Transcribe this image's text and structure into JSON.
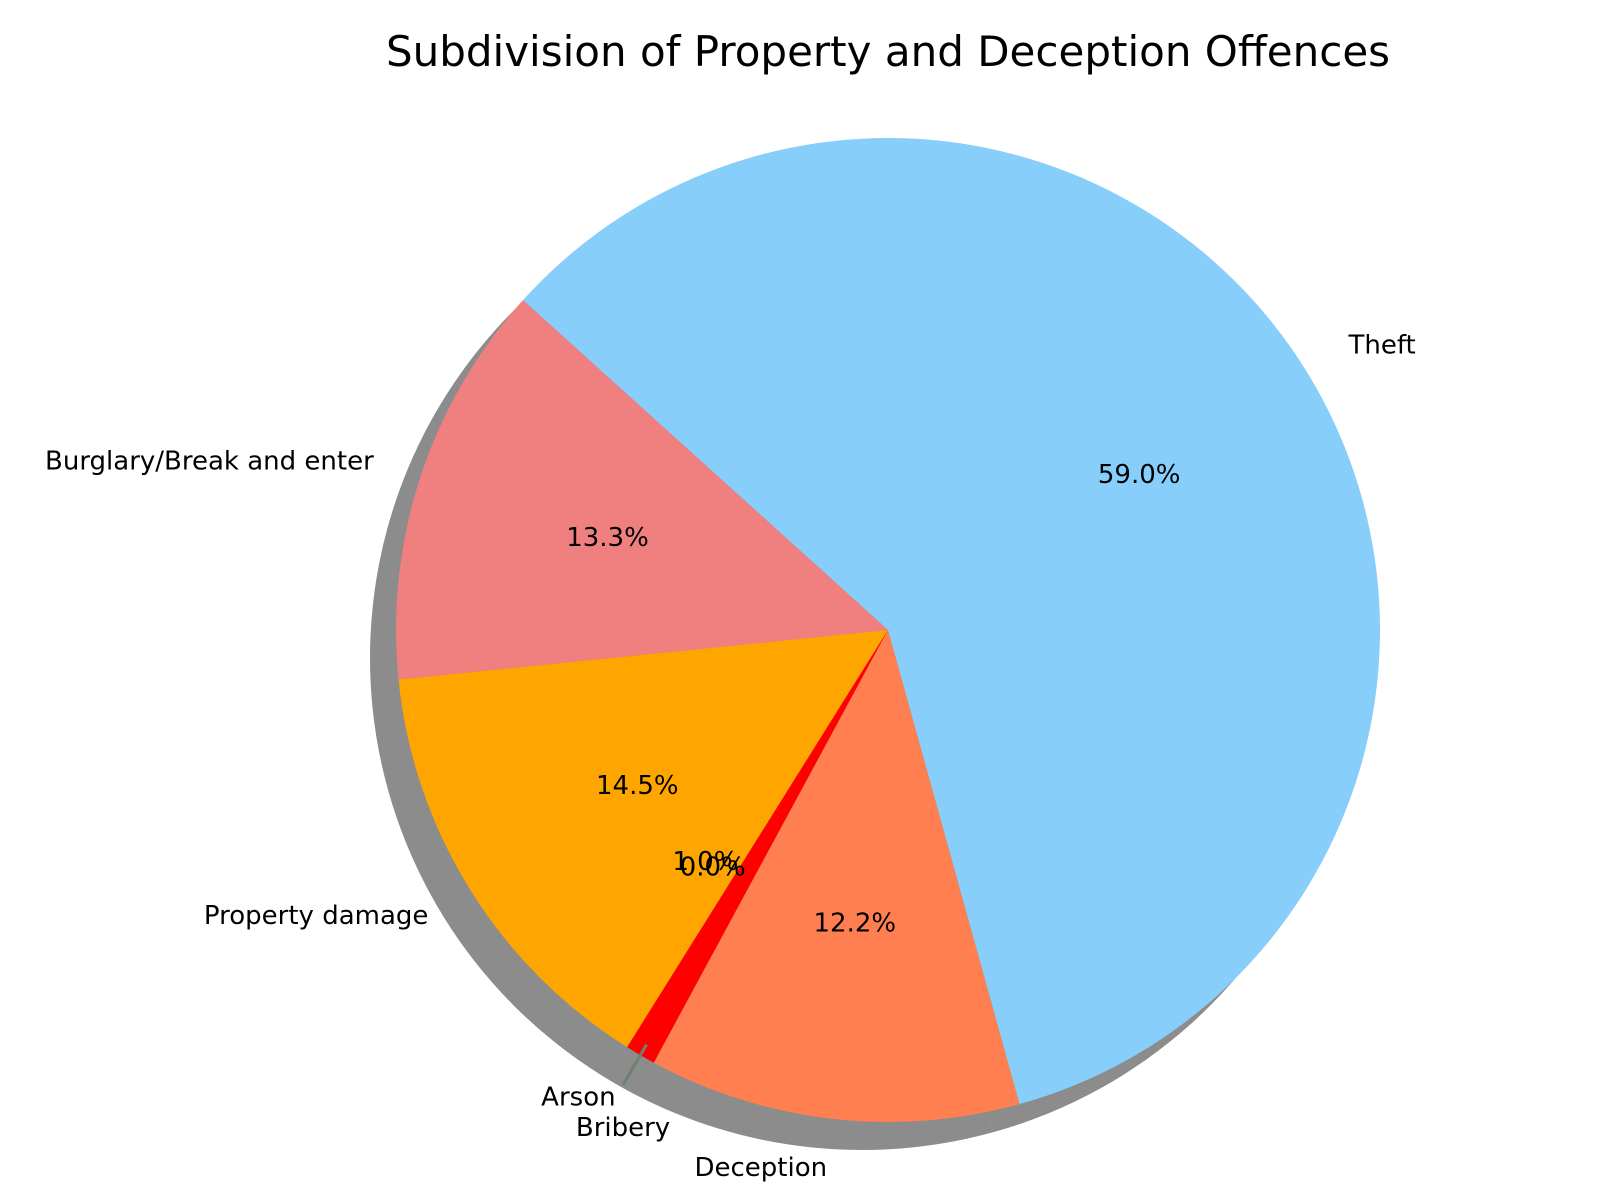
{
  "chart_data": {
    "type": "pie",
    "title": "Subdivision of Property and Deception Offences",
    "categories": [
      "Theft",
      "Burglary/Break and enter",
      "Property damage",
      "Arson",
      "Bribery",
      "Deception"
    ],
    "values": [
      59.0,
      13.3,
      14.5,
      1.0,
      0.0,
      12.2
    ],
    "value_labels": [
      "59.0%",
      "13.3%",
      "14.5%",
      "1.0%",
      "0.0%",
      "12.2%"
    ],
    "colors": [
      "#87CEFA",
      "#F08080",
      "#FFA500",
      "#FF0000",
      "#FFFFFF",
      "#FF7F50"
    ],
    "shadow": true,
    "legend": "none"
  }
}
